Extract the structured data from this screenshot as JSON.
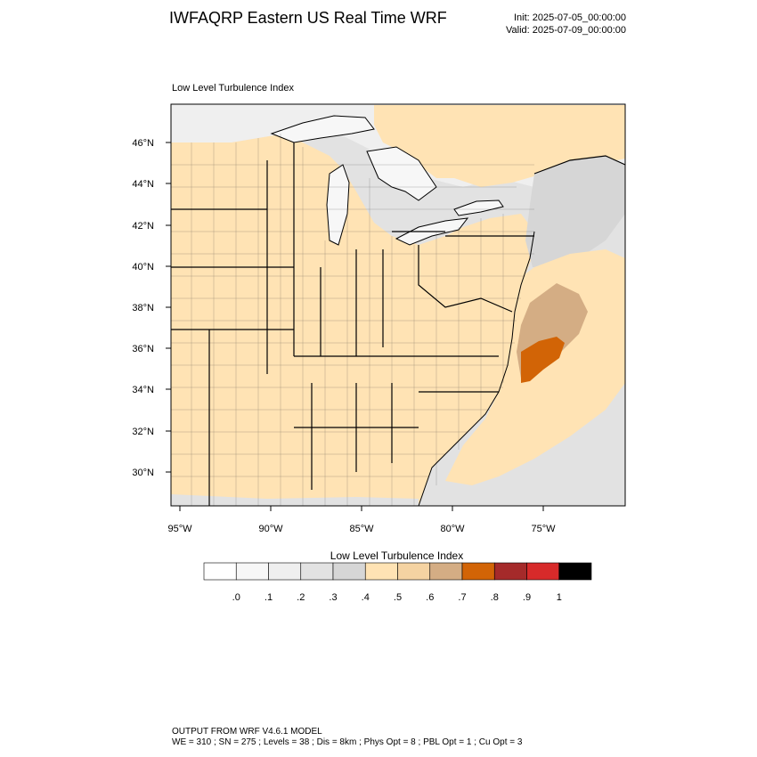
{
  "header": {
    "title": "IWFAQRP Eastern US Real Time WRF",
    "init": "Init: 2025-07-05_00:00:00",
    "valid": "Valid: 2025-07-09_00:00:00"
  },
  "panel": {
    "field_label": "Low Level Turbulence Index"
  },
  "axes": {
    "lon_ticks": [
      "95°W",
      "90°W",
      "85°W",
      "80°W",
      "75°W"
    ],
    "lat_ticks": [
      "46°N",
      "44°N",
      "42°N",
      "40°N",
      "38°N",
      "36°N",
      "34°N",
      "32°N",
      "30°N"
    ]
  },
  "colorbar": {
    "title": "Low Level Turbulence Index",
    "colors": [
      "#ffffff",
      "#f7f7f7",
      "#efefef",
      "#e2e2e2",
      "#d6d6d6",
      "#ffe3b4",
      "#f5d3a2",
      "#d4ad84",
      "#d26406",
      "#a52a2a",
      "#d72a2a",
      "#000000"
    ],
    "tick_labels": [
      ".0",
      ".1",
      ".2",
      ".3",
      ".4",
      ".5",
      ".6",
      ".7",
      ".8",
      ".9",
      "1"
    ]
  },
  "footer": {
    "model": "OUTPUT FROM WRF V4.6.1 MODEL",
    "config": "WE = 310 ; SN = 275 ; Levels = 38 ; Dis = 8km ; Phys Opt = 8 ; PBL Opt = 1 ; Cu Opt = 3"
  }
}
